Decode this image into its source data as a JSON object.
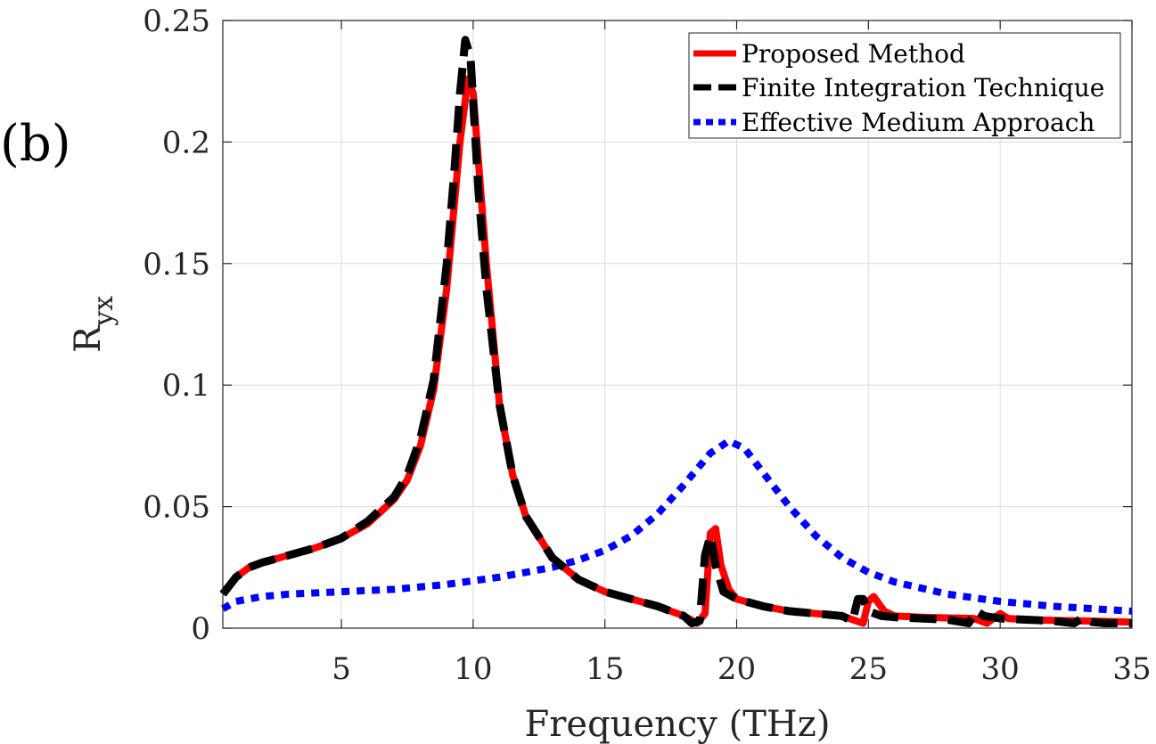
{
  "panel_label": "(b)",
  "chart_data": {
    "type": "line",
    "title": "",
    "xlabel": "Frequency (THz)",
    "ylabel_main": "R",
    "ylabel_sub": "yx",
    "xlim": [
      0.5,
      35
    ],
    "ylim": [
      0,
      0.25
    ],
    "grid": true,
    "legend_position": "top-right",
    "xticks": [
      5,
      10,
      15,
      20,
      25,
      30,
      35
    ],
    "xtick_labels": [
      "5",
      "10",
      "15",
      "20",
      "25",
      "30",
      "35"
    ],
    "yticks": [
      0,
      0.05,
      0.1,
      0.15,
      0.2,
      0.25
    ],
    "ytick_labels": [
      "0",
      "0.05",
      "0.1",
      "0.15",
      "0.2",
      "0.25"
    ],
    "series": [
      {
        "name": "Proposed Method",
        "color": "#ff0000",
        "style": "solid",
        "x": [
          0.5,
          1,
          1.5,
          2,
          3,
          4,
          5,
          6,
          7,
          7.5,
          8,
          8.5,
          9,
          9.5,
          9.8,
          10,
          10.5,
          11,
          11.5,
          12,
          13,
          14,
          15,
          16,
          17,
          18,
          18.5,
          18.8,
          19.0,
          19.2,
          19.4,
          19.7,
          20,
          21,
          22,
          23,
          24,
          24.8,
          25.0,
          25.2,
          25.6,
          26,
          27,
          28,
          29,
          29.5,
          29.8,
          30.0,
          30.3,
          31,
          32,
          33,
          34,
          35
        ],
        "y": [
          0.014,
          0.021,
          0.025,
          0.027,
          0.03,
          0.033,
          0.037,
          0.043,
          0.053,
          0.061,
          0.075,
          0.098,
          0.14,
          0.2,
          0.226,
          0.22,
          0.15,
          0.092,
          0.063,
          0.046,
          0.029,
          0.02,
          0.015,
          0.012,
          0.009,
          0.005,
          0.002,
          0.006,
          0.039,
          0.041,
          0.026,
          0.016,
          0.012,
          0.009,
          0.007,
          0.006,
          0.005,
          0.002,
          0.011,
          0.013,
          0.007,
          0.005,
          0.0045,
          0.0042,
          0.004,
          0.002,
          0.0045,
          0.006,
          0.004,
          0.0035,
          0.0032,
          0.003,
          0.0028,
          0.0025
        ]
      },
      {
        "name": "Finite Integration Technique",
        "color": "#000000",
        "style": "dashed",
        "x": [
          0.5,
          1,
          1.5,
          2,
          3,
          4,
          5,
          6,
          7,
          7.5,
          8,
          8.5,
          9,
          9.3,
          9.5,
          9.7,
          9.9,
          10.2,
          10.5,
          11,
          11.5,
          12,
          13,
          14,
          15,
          16,
          17,
          18,
          18.3,
          18.6,
          18.8,
          19.0,
          19.2,
          19.5,
          20,
          21,
          22,
          23,
          24,
          24.4,
          24.6,
          24.8,
          25.0,
          25.5,
          26,
          27,
          28,
          28.8,
          29.1,
          29.4,
          30,
          31,
          32,
          32.8,
          33.1,
          33.5,
          34,
          35
        ],
        "y": [
          0.014,
          0.021,
          0.025,
          0.027,
          0.03,
          0.033,
          0.037,
          0.044,
          0.054,
          0.063,
          0.078,
          0.102,
          0.15,
          0.19,
          0.22,
          0.242,
          0.235,
          0.18,
          0.14,
          0.092,
          0.063,
          0.046,
          0.029,
          0.02,
          0.015,
          0.012,
          0.009,
          0.005,
          0.002,
          0.003,
          0.03,
          0.038,
          0.026,
          0.015,
          0.012,
          0.009,
          0.007,
          0.006,
          0.005,
          0.003,
          0.012,
          0.012,
          0.007,
          0.005,
          0.0045,
          0.004,
          0.0035,
          0.002,
          0.007,
          0.005,
          0.004,
          0.0035,
          0.003,
          0.002,
          0.004,
          0.0025,
          0.002,
          0.002
        ]
      },
      {
        "name": "Effective Medium Approach",
        "color": "#0000ff",
        "style": "dotted",
        "x": [
          0.5,
          1,
          2,
          3,
          5,
          7,
          9,
          11,
          13,
          14,
          15,
          16,
          17,
          18,
          19,
          19.7,
          20.3,
          21,
          22,
          23,
          24,
          25,
          26,
          28,
          30,
          32,
          35
        ],
        "y": [
          0.008,
          0.011,
          0.013,
          0.014,
          0.015,
          0.016,
          0.018,
          0.021,
          0.025,
          0.028,
          0.032,
          0.038,
          0.047,
          0.059,
          0.072,
          0.077,
          0.074,
          0.064,
          0.05,
          0.038,
          0.029,
          0.023,
          0.019,
          0.014,
          0.011,
          0.009,
          0.007
        ]
      }
    ]
  }
}
